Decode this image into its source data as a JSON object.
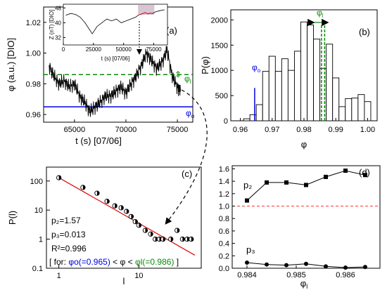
{
  "chart_data": [
    {
      "panel": "(a)",
      "type": "line",
      "xlabel": "t (s) [07/06]",
      "ylabel": "φ (a.u.) [DIO]",
      "xlim": [
        62000,
        76500
      ],
      "ylim": [
        0.955,
        1.03
      ],
      "xticks": [
        "65000",
        "70000",
        "75000"
      ],
      "yticks": [
        "0.96",
        "0.98",
        "1.00",
        "1.02"
      ],
      "series": [
        {
          "values": [
            [
              62500,
              0.992
            ],
            [
              63000,
              0.985
            ],
            [
              63500,
              0.98
            ],
            [
              64000,
              0.982
            ],
            [
              64500,
              0.978
            ],
            [
              65000,
              0.98
            ],
            [
              65500,
              0.972
            ],
            [
              66000,
              0.968
            ],
            [
              66500,
              0.962
            ],
            [
              67000,
              0.965
            ],
            [
              67500,
              0.968
            ],
            [
              68000,
              0.972
            ],
            [
              68500,
              0.972
            ],
            [
              69000,
              0.975
            ],
            [
              69500,
              0.978
            ],
            [
              70000,
              0.974
            ],
            [
              70500,
              0.98
            ],
            [
              71000,
              0.985
            ],
            [
              71500,
              0.992
            ],
            [
              72000,
              1.0
            ],
            [
              72500,
              0.995
            ],
            [
              73000,
              0.99
            ],
            [
              73500,
              0.994
            ],
            [
              74000,
              1.002
            ],
            [
              74500,
              0.985
            ],
            [
              75000,
              0.978
            ],
            [
              75300,
              0.975
            ]
          ]
        }
      ],
      "hlines": [
        {
          "value": 0.986,
          "color": "#0a8a0a",
          "style": "dashed",
          "label": "φ",
          "sub": "l"
        },
        {
          "value": 0.965,
          "color": "#0000dd",
          "style": "solid",
          "label": "φ",
          "sub": "o"
        }
      ],
      "inset": {
        "ylabel": "Z (nT) [DIO]",
        "xlabel": "t (s) [07/06]",
        "xticks": [
          "0",
          "25000",
          "50000",
          "75000"
        ],
        "yticks": [
          "32",
          "40",
          "48"
        ],
        "xlim": [
          0,
          86400
        ],
        "ylim": [
          28,
          50
        ],
        "values": [
          [
            2000,
            44
          ],
          [
            6000,
            45
          ],
          [
            10000,
            44.5
          ],
          [
            14000,
            43
          ],
          [
            18000,
            40
          ],
          [
            22000,
            36
          ],
          [
            24000,
            34
          ],
          [
            28000,
            38
          ],
          [
            32000,
            40
          ],
          [
            36000,
            42
          ],
          [
            40000,
            41
          ],
          [
            44000,
            42
          ],
          [
            48000,
            40
          ],
          [
            52000,
            41
          ],
          [
            56000,
            42
          ],
          [
            60000,
            43
          ],
          [
            62000,
            44
          ],
          [
            64000,
            44.5
          ],
          [
            66000,
            45
          ],
          [
            68000,
            45.5
          ],
          [
            70000,
            44.8
          ],
          [
            72000,
            45.2
          ],
          [
            74000,
            45
          ],
          [
            76000,
            45.8
          ],
          [
            80000,
            46.5
          ],
          [
            84000,
            47
          ]
        ],
        "highlight": [
          62000,
          75500
        ]
      }
    },
    {
      "panel": "(b)",
      "type": "bar",
      "xlabel": "φ",
      "ylabel": "P(φ)",
      "xlim": [
        0.957,
        1.003
      ],
      "ylim": [
        0,
        2200
      ],
      "xticks": [
        "0.96",
        "0.97",
        "0.98",
        "0.99",
        "1.00"
      ],
      "yticks": [
        "0",
        "500",
        "1000",
        "1500",
        "2000"
      ],
      "bin_width": 0.002,
      "x": [
        0.962,
        0.964,
        0.966,
        0.968,
        0.97,
        0.972,
        0.974,
        0.976,
        0.978,
        0.98,
        0.982,
        0.984,
        0.986,
        0.988,
        0.99,
        0.992,
        0.994,
        0.996,
        0.998,
        1.0
      ],
      "values": [
        40,
        120,
        320,
        980,
        1280,
        980,
        1230,
        1000,
        1380,
        1960,
        1900,
        1620,
        1040,
        1520,
        850,
        280,
        440,
        450,
        520,
        380
      ],
      "vlines": [
        {
          "value": 0.9645,
          "color": "#0000dd",
          "label": "φ",
          "sub": "o"
        },
        {
          "value": 0.9855,
          "color": "#0a8a0a"
        },
        {
          "value": 0.9865,
          "color": "#0a8a0a"
        }
      ],
      "annotation_label": "φ",
      "annotation_sub": "l"
    },
    {
      "panel": "(c)",
      "type": "scatter",
      "xlabel": "l",
      "ylabel": "P(l)",
      "xscale": "log",
      "yscale": "log",
      "xlim": [
        0.7,
        60
      ],
      "ylim": [
        0.1,
        300
      ],
      "xticks": [
        "1",
        "10"
      ],
      "yticks": [
        "0.1",
        "1",
        "10",
        "100"
      ],
      "points": [
        [
          1,
          130
        ],
        [
          2,
          60
        ],
        [
          3,
          38
        ],
        [
          4,
          20
        ],
        [
          5,
          14
        ],
        [
          6,
          12
        ],
        [
          7,
          9
        ],
        [
          8,
          6
        ],
        [
          9,
          4
        ],
        [
          10,
          3
        ],
        [
          12,
          2
        ],
        [
          14,
          1.5
        ],
        [
          16,
          1
        ],
        [
          18,
          1
        ],
        [
          20,
          1
        ],
        [
          25,
          1
        ],
        [
          30,
          2
        ],
        [
          35,
          1
        ],
        [
          40,
          1
        ],
        [
          45,
          1
        ]
      ],
      "fit_line": [
        [
          1,
          130
        ],
        [
          50,
          0.28
        ]
      ],
      "annotations": {
        "p2": "p₂=1.57",
        "p3": "p₃=0.013",
        "r2": "R²=0.996",
        "cond_open": "[ for: ",
        "phi_o": "φo(=0.965)",
        "mid": " < φ < ",
        "phi_l": "φl(=0.986)",
        "cond_close": " ]"
      }
    },
    {
      "panel": "(d)",
      "type": "line",
      "xlabel": "φ",
      "xlabel_sub": "l",
      "xlim": [
        0.9837,
        0.9867
      ],
      "ylim": [
        0,
        1.65
      ],
      "xticks": [
        "0.984",
        "0.985",
        "0.986"
      ],
      "yticks": [
        "0.0",
        "0.2",
        "0.4",
        "0.6",
        "0.8",
        "1.0",
        "1.2",
        "1.4",
        "1.6"
      ],
      "series": [
        {
          "name": "p₂",
          "marker": "square",
          "values": [
            [
              0.984,
              1.09
            ],
            [
              0.9844,
              1.38
            ],
            [
              0.9848,
              1.38
            ],
            [
              0.9852,
              1.34
            ],
            [
              0.9856,
              1.47
            ],
            [
              0.986,
              1.57
            ],
            [
              0.9864,
              1.5
            ]
          ]
        },
        {
          "name": "p₃",
          "marker": "circle",
          "values": [
            [
              0.984,
              0.09
            ],
            [
              0.9844,
              0.06
            ],
            [
              0.9848,
              0.05
            ],
            [
              0.9852,
              0.07
            ],
            [
              0.9856,
              0.03
            ],
            [
              0.986,
              0.01
            ],
            [
              0.9864,
              0.02
            ]
          ]
        }
      ],
      "hline": {
        "value": 1.0,
        "color": "#ff3333",
        "style": "dashed"
      }
    }
  ],
  "labels": {
    "a": "(a)",
    "b": "(b)",
    "c": "(c)",
    "d": "(d)"
  },
  "colors": {
    "blue": "#0000dd",
    "green": "#0a8a0a",
    "red": "#dd1111",
    "black": "#000000"
  }
}
